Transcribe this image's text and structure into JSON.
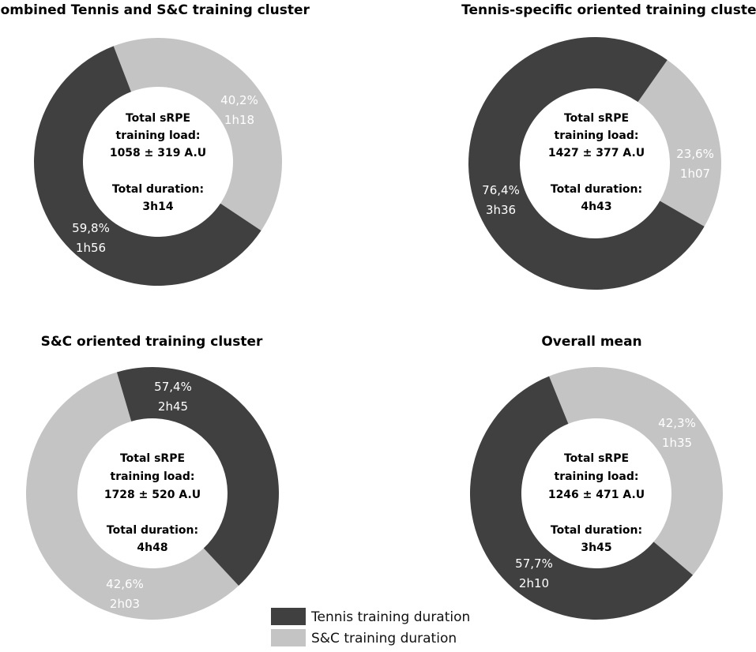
{
  "colors": {
    "tennis": "#404040",
    "sc": "#c4c4c4"
  },
  "legend": {
    "tennis_label": "Tennis training duration",
    "sc_label": "S&C training duration"
  },
  "chart_data": [
    {
      "type": "pie",
      "title": "Combined Tennis and S&C training cluster",
      "slices": [
        {
          "series": "tennis",
          "percent": 59.8,
          "percent_label": "59,8%",
          "duration_label": "1h56"
        },
        {
          "series": "sc",
          "percent": 40.2,
          "percent_label": "40,2%",
          "duration_label": "1h18"
        }
      ],
      "center": {
        "line1": "Total sRPE",
        "line2": "training load:",
        "line3": "1058 ± 319 A.U",
        "line4": "Total duration:",
        "line5": "3h14"
      }
    },
    {
      "type": "pie",
      "title": "Tennis-specific oriented training cluster",
      "slices": [
        {
          "series": "tennis",
          "percent": 76.4,
          "percent_label": "76,4%",
          "duration_label": "3h36"
        },
        {
          "series": "sc",
          "percent": 23.6,
          "percent_label": "23,6%",
          "duration_label": "1h07"
        }
      ],
      "center": {
        "line1": "Total sRPE",
        "line2": "training load:",
        "line3": "1427 ± 377 A.U",
        "line4": "Total duration:",
        "line5": "4h43"
      }
    },
    {
      "type": "pie",
      "title": "S&C oriented training cluster",
      "slices": [
        {
          "series": "tennis",
          "percent": 42.6,
          "percent_label": "42,6%",
          "duration_label": "2h03"
        },
        {
          "series": "sc",
          "percent": 57.4,
          "percent_label": "57,4%",
          "duration_label": "2h45"
        }
      ],
      "center": {
        "line1": "Total sRPE",
        "line2": "training load:",
        "line3": "1728 ± 520  A.U",
        "line4": "Total duration:",
        "line5": "4h48"
      }
    },
    {
      "type": "pie",
      "title": "Overall mean",
      "slices": [
        {
          "series": "tennis",
          "percent": 57.7,
          "percent_label": "57,7%",
          "duration_label": "2h10"
        },
        {
          "series": "sc",
          "percent": 42.3,
          "percent_label": "42,3%",
          "duration_label": "1h35"
        }
      ],
      "center": {
        "line1": "Total sRPE",
        "line2": "training load:",
        "line3": "1246 ± 471 A.U",
        "line4": "Total duration:",
        "line5": "3h45"
      }
    }
  ]
}
